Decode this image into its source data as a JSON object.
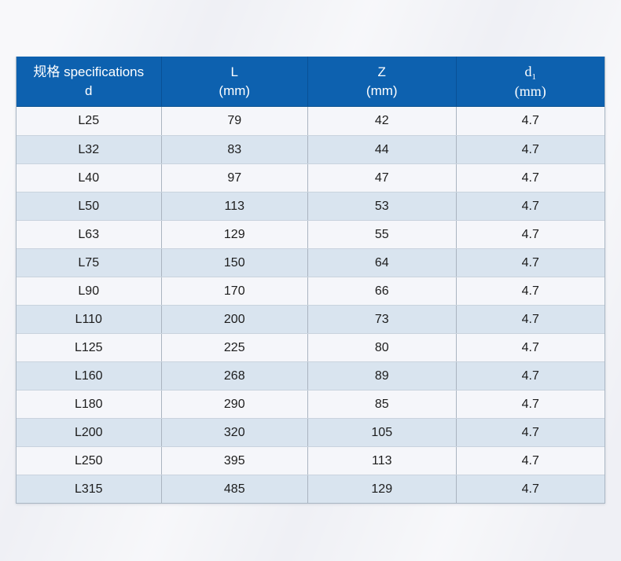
{
  "page": {
    "background_color": "#eff0f5"
  },
  "table": {
    "colors": {
      "header_background": "#0d61af",
      "header_text": "#ffffff",
      "row_base": "#f5f6fa",
      "row_alternate": "#d9e4ef",
      "grid_line": "#aab4c0",
      "body_text": "#1c1c1c"
    },
    "header": {
      "spec": {
        "line1": "规格 specifications",
        "line2": "d"
      },
      "l": {
        "line1": "L",
        "line2": "(mm)"
      },
      "z": {
        "line1": "Z",
        "line2": "(mm)"
      },
      "d1": {
        "base": "d",
        "sub": "1",
        "line2": "(mm)"
      }
    },
    "rows": [
      [
        "L25",
        "79",
        "42",
        "4.7"
      ],
      [
        "L32",
        "83",
        "44",
        "4.7"
      ],
      [
        "L40",
        "97",
        "47",
        "4.7"
      ],
      [
        "L50",
        "113",
        "53",
        "4.7"
      ],
      [
        "L63",
        "129",
        "55",
        "4.7"
      ],
      [
        "L75",
        "150",
        "64",
        "4.7"
      ],
      [
        "L90",
        "170",
        "66",
        "4.7"
      ],
      [
        "L110",
        "200",
        "73",
        "4.7"
      ],
      [
        "L125",
        "225",
        "80",
        "4.7"
      ],
      [
        "L160",
        "268",
        "89",
        "4.7"
      ],
      [
        "L180",
        "290",
        "85",
        "4.7"
      ],
      [
        "L200",
        "320",
        "105",
        "4.7"
      ],
      [
        "L250",
        "395",
        "113",
        "4.7"
      ],
      [
        "L315",
        "485",
        "129",
        "4.7"
      ]
    ]
  }
}
